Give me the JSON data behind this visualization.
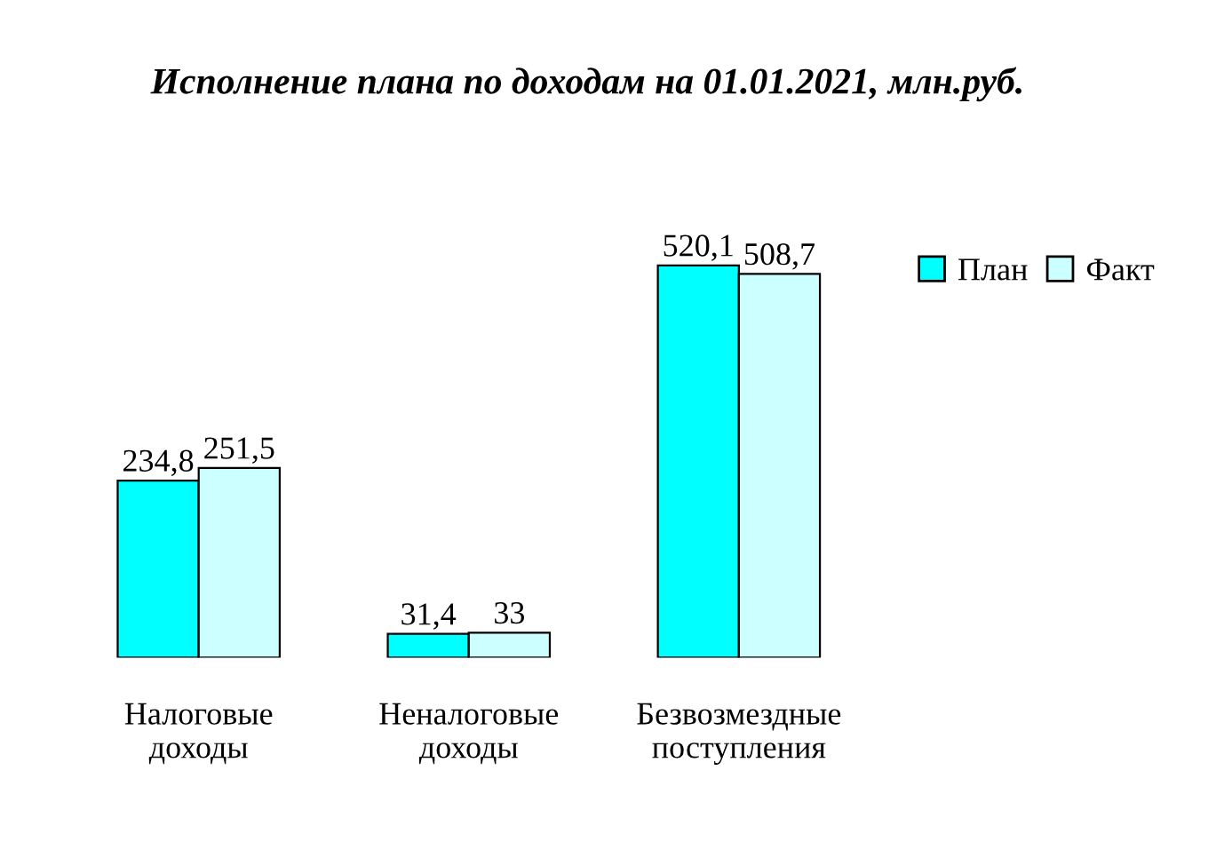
{
  "chart_data": {
    "type": "bar",
    "title": "Исполнение плана по доходам на 01.01.2021, млн.руб.",
    "categories": [
      "Налоговые\nдоходы",
      "Неналоговые\nдоходы",
      "Безвозмездные\nпоступления"
    ],
    "series": [
      {
        "name": "План",
        "color": "#00ffff",
        "values": [
          234.8,
          31.4,
          520.1
        ],
        "value_labels": [
          "234,8",
          "31,4",
          "520,1"
        ]
      },
      {
        "name": "Факт",
        "color": "#ccffff",
        "values": [
          251.5,
          33,
          508.7
        ],
        "value_labels": [
          "251,5",
          "33",
          "508,7"
        ]
      }
    ],
    "legend": "right",
    "grid": false
  }
}
